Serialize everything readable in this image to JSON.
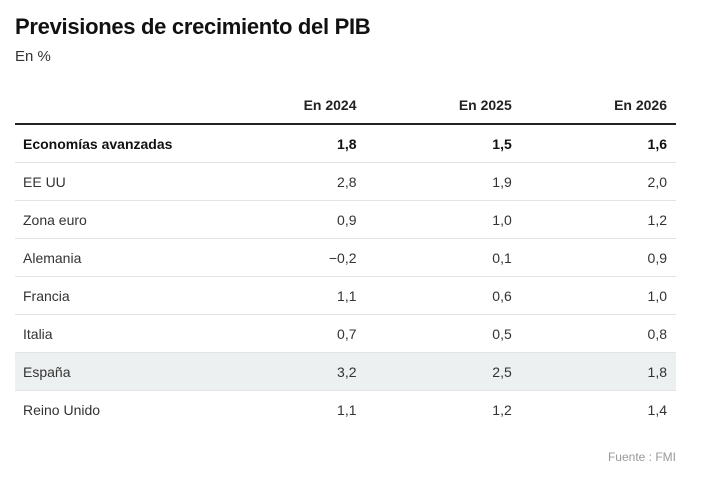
{
  "header": {
    "title": "Previsiones de crecimiento del PIB",
    "subtitle": "En %"
  },
  "chart_data": {
    "type": "table",
    "title": "Previsiones de crecimiento del PIB",
    "subtitle": "En %",
    "columns": [
      "",
      "En 2024",
      "En 2025",
      "En 2026"
    ],
    "rows": [
      {
        "label": "Economías avanzadas",
        "values": [
          "1,8",
          "1,5",
          "1,6"
        ],
        "bold": true,
        "highlight": false
      },
      {
        "label": "EE UU",
        "values": [
          "2,8",
          "1,9",
          "2,0"
        ],
        "bold": false,
        "highlight": false
      },
      {
        "label": "Zona euro",
        "values": [
          "0,9",
          "1,0",
          "1,2"
        ],
        "bold": false,
        "highlight": false
      },
      {
        "label": "Alemania",
        "values": [
          "−0,2",
          "0,1",
          "0,9"
        ],
        "bold": false,
        "highlight": false
      },
      {
        "label": "Francia",
        "values": [
          "1,1",
          "0,6",
          "1,0"
        ],
        "bold": false,
        "highlight": false
      },
      {
        "label": "Italia",
        "values": [
          "0,7",
          "0,5",
          "0,8"
        ],
        "bold": false,
        "highlight": false
      },
      {
        "label": "España",
        "values": [
          "3,2",
          "2,5",
          "1,8"
        ],
        "bold": false,
        "highlight": true
      },
      {
        "label": "Reino Unido",
        "values": [
          "1,1",
          "1,2",
          "1,4"
        ],
        "bold": false,
        "highlight": false
      }
    ],
    "source": "Fuente : FMI"
  },
  "colors": {
    "highlight_row": "#edf0f0",
    "header_rule": "#222222",
    "row_rule": "#e3e3e3",
    "source_text": "#999999"
  }
}
